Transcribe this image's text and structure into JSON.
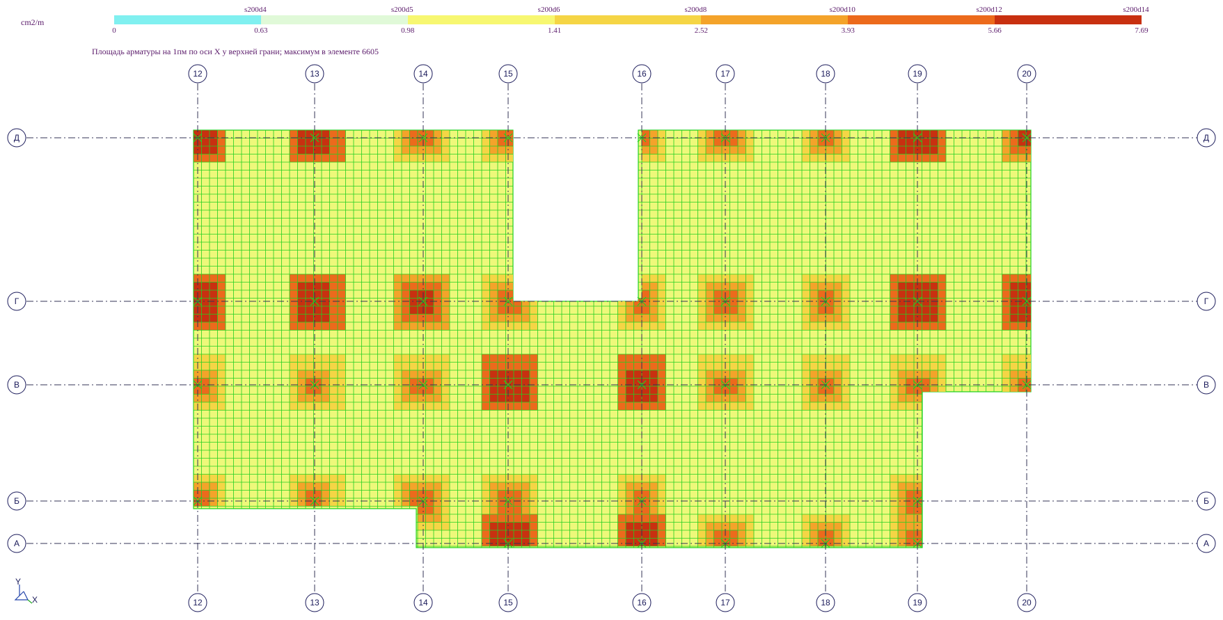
{
  "unit_label": "cm2/m",
  "legend": {
    "colors": [
      "#80f0f0",
      "#e0f9d8",
      "#f7f771",
      "#f5d545",
      "#f4a32a",
      "#ec6a1c",
      "#c83010"
    ],
    "thresholds": [
      "0",
      "0.63",
      "0.98",
      "1.41",
      "2.52",
      "3.93",
      "5.66",
      "7.69"
    ],
    "rebar_labels": [
      "s200d4",
      "s200d5",
      "s200d6",
      "s200d8",
      "s200d10",
      "s200d12",
      "s200d14"
    ]
  },
  "caption": "Площадь арматуры на 1пм по оси X у верхней грани; максимум в элементе 6605",
  "axes": {
    "vertical": [
      {
        "label": "12",
        "tick": "12"
      },
      {
        "label": "13",
        "tick": "13"
      },
      {
        "label": "14",
        "tick": "14"
      },
      {
        "label": "15",
        "tick": "15"
      },
      {
        "label": "16",
        "tick": "16"
      },
      {
        "label": "17",
        "tick": "17"
      },
      {
        "label": "18",
        "tick": "18"
      },
      {
        "label": "19",
        "tick": "19"
      },
      {
        "label": "20",
        "tick": "20"
      }
    ],
    "horizontal": [
      "Д",
      "Г",
      "В",
      "Б",
      "А"
    ]
  },
  "coord_icon": {
    "x_label": "X",
    "y_label": "Y"
  },
  "colors": {
    "mesh_line": "#22d022",
    "base_fill": "#eef87a",
    "axis_line": "#333355",
    "bubble_stroke": "#1a1a5a"
  }
}
